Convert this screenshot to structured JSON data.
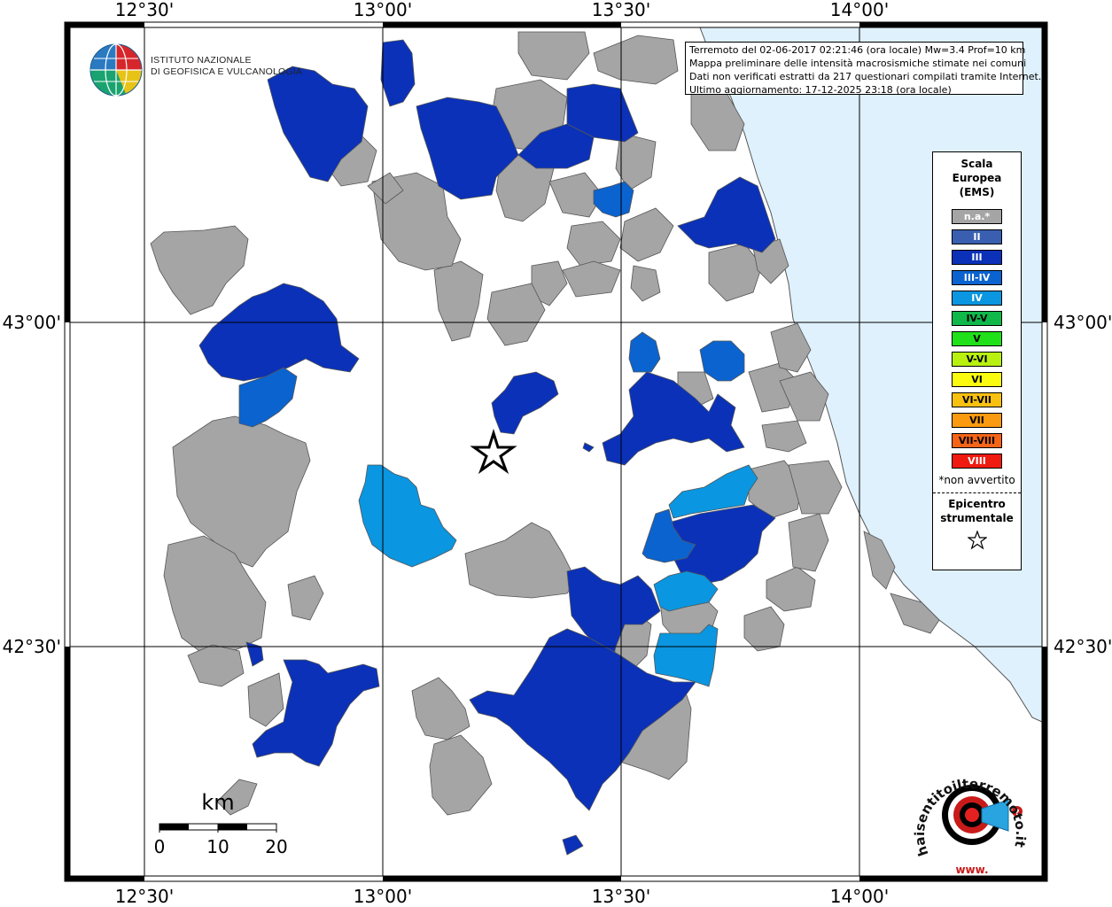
{
  "map": {
    "longitude_labels": [
      "12°30'",
      "13°00'",
      "13°30'",
      "14°00'"
    ],
    "latitude_labels": [
      "43°00'",
      "42°30'"
    ],
    "epicenter_symbol": "star-icon",
    "sea_color": "#dff1fc",
    "land_color": "#ffffff",
    "na_fill": "#a5a5a5",
    "region_border": "#555555"
  },
  "info": {
    "line1": "Terremoto del 02-06-2017 02:21:46 (ora locale) Mw=3.4 Prof=10 km",
    "line2": "Mappa preliminare delle intensità macrosismiche stimate nei comuni",
    "line3": "Dati non verificati estratti da 217 questionari compilati tramite Internet.",
    "line4": "Ultimo aggiornamento: 17-12-2025 23:18 (ora locale)"
  },
  "legend": {
    "title_line1": "Scala",
    "title_line2": "Europea",
    "title_line3": "(EMS)",
    "items": [
      {
        "label": "n.a.*",
        "color": "#a5a5a5"
      },
      {
        "label": "II",
        "color": "#3a5fb0"
      },
      {
        "label": "III",
        "color": "#0a31b8"
      },
      {
        "label": "III-IV",
        "color": "#0a63cf"
      },
      {
        "label": "IV",
        "color": "#0a96e0"
      },
      {
        "label": "IV-V",
        "color": "#10b84a"
      },
      {
        "label": "V",
        "color": "#20e01a"
      },
      {
        "label": "V-VI",
        "color": "#b8f010"
      },
      {
        "label": "VI",
        "color": "#fbfb10"
      },
      {
        "label": "VI-VII",
        "color": "#f8c010"
      },
      {
        "label": "VII",
        "color": "#fa9a10"
      },
      {
        "label": "VII-VIII",
        "color": "#f56418"
      },
      {
        "label": "VIII",
        "color": "#ef1a10"
      }
    ],
    "note": "*non avvertito",
    "epicenter_line1": "Epicentro",
    "epicenter_line2": "strumentale"
  },
  "logo": {
    "line1": "ISTITUTO NAZIONALE",
    "line2": "DI GEOFISICA E VULCANOLOGIA"
  },
  "scale_bar": {
    "unit": "km",
    "ticks": [
      "0",
      "10",
      "20"
    ]
  },
  "hsit_logo": {
    "text_main": "haisentitoilterremoto.it",
    "text_www": "www."
  }
}
